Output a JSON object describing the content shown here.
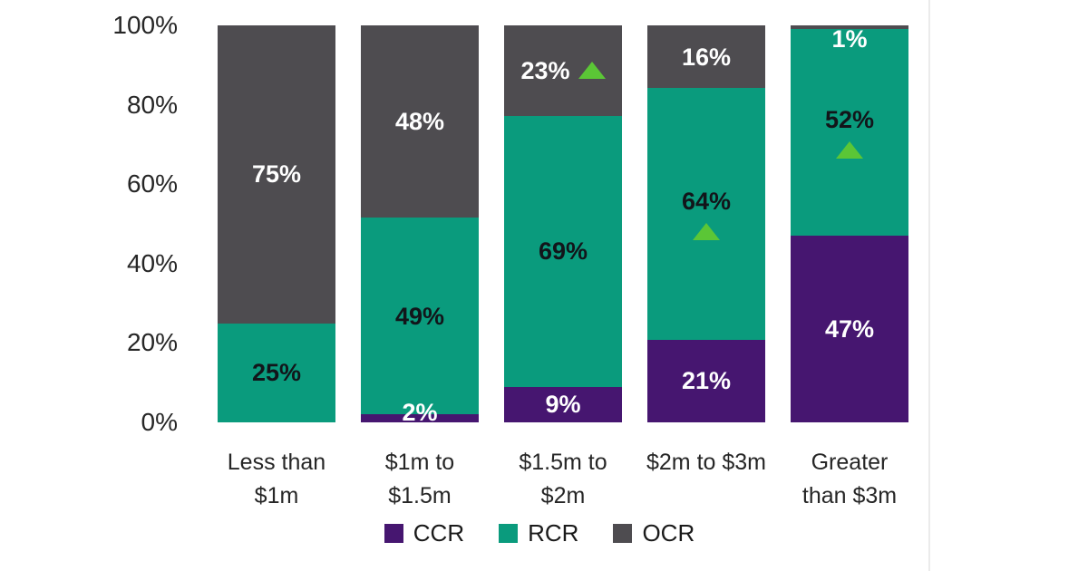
{
  "chart_data": {
    "type": "bar",
    "stacked": true,
    "orientation": "vertical",
    "title": "",
    "categories": [
      "Less than\n$1m",
      "$1m to\n$1.5m",
      "$1.5m to\n$2m",
      "$2m to $3m",
      "Greater\nthan $3m"
    ],
    "series": [
      {
        "name": "CCR",
        "color": "#461670",
        "label_color": "#ffffff",
        "values": [
          0,
          2,
          9,
          21,
          47
        ],
        "labels": [
          "",
          "2%",
          "9%",
          "21%",
          "47%"
        ]
      },
      {
        "name": "RCR",
        "color": "#0a9b7d",
        "label_color": "#12151a",
        "values": [
          25,
          49,
          69,
          64,
          52
        ],
        "labels": [
          "25%",
          "49%",
          "69%",
          "64%",
          "52%"
        ]
      },
      {
        "name": "OCR",
        "color": "#4e4c50",
        "label_color": "#ffffff",
        "values": [
          75,
          48,
          23,
          16,
          1
        ],
        "labels": [
          "75%",
          "48%",
          "23%",
          "16%",
          "1%"
        ]
      }
    ],
    "y_ticks": [
      "0%",
      "20%",
      "40%",
      "60%",
      "80%",
      "100%"
    ],
    "ylim": [
      0,
      100
    ],
    "grid": false,
    "legend_position": "bottom",
    "legend_entries": [
      "CCR",
      "RCR",
      "OCR"
    ],
    "markers": [
      {
        "category_index": 2,
        "series": "OCR",
        "placement": "right"
      },
      {
        "category_index": 3,
        "series": "RCR",
        "placement": "below"
      },
      {
        "category_index": 4,
        "series": "RCR",
        "placement": "below"
      }
    ],
    "marker_shape": "triangle-up",
    "marker_color": "#5bc636"
  }
}
